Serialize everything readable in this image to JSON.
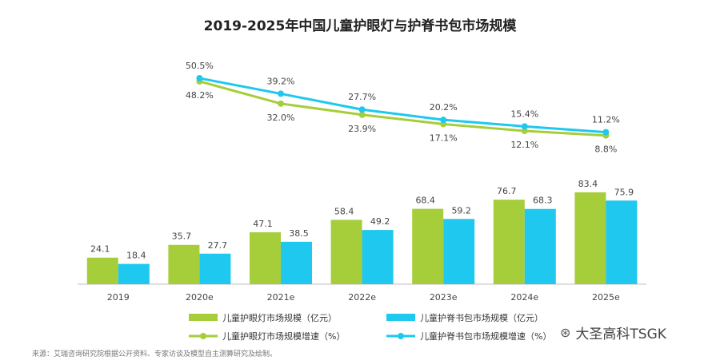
{
  "chart_data": {
    "type": "bar+line",
    "title": "2019-2025年中国儿童护眼灯与护脊书包市场规模",
    "categories": [
      "2019",
      "2020e",
      "2021e",
      "2022e",
      "2023e",
      "2024e",
      "2025e"
    ],
    "bar_series": [
      {
        "name": "儿童护眼灯市场规模（亿元）",
        "color": "#a6cd3a",
        "values": [
          24.1,
          35.7,
          47.1,
          58.4,
          68.4,
          76.7,
          83.4
        ]
      },
      {
        "name": "儿童护脊书包市场规模（亿元）",
        "color": "#1ec8ee",
        "values": [
          18.4,
          27.7,
          38.5,
          49.2,
          59.2,
          68.3,
          75.9
        ]
      }
    ],
    "line_series": [
      {
        "name": "儿童护眼灯市场规模增速（%）",
        "color": "#a6cd3a",
        "x": [
          "2020e",
          "2021e",
          "2022e",
          "2023e",
          "2024e",
          "2025e"
        ],
        "labels": [
          "48.2%",
          "32.0%",
          "23.9%",
          "17.1%",
          "12.1%",
          "8.8%"
        ],
        "values": [
          48.2,
          32.0,
          23.9,
          17.1,
          12.1,
          8.8
        ]
      },
      {
        "name": "儿童护脊书包市场规模增速（%）",
        "color": "#1ec8ee",
        "x": [
          "2020e",
          "2021e",
          "2022e",
          "2023e",
          "2024e",
          "2025e"
        ],
        "labels": [
          "50.5%",
          "39.2%",
          "27.7%",
          "20.2%",
          "15.4%",
          "11.2%"
        ],
        "values": [
          50.5,
          39.2,
          27.7,
          20.2,
          15.4,
          11.2
        ]
      }
    ],
    "legend_position": "bottom"
  },
  "source_note": "来源：艾瑞咨询研究院根据公开资料、专家访谈及模型自主测算研究及绘制。",
  "watermark": "大圣高科TSGK"
}
